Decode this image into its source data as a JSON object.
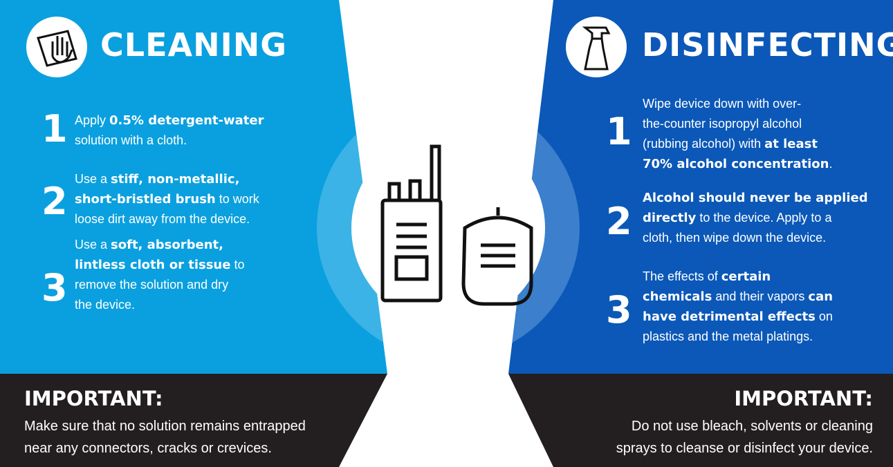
{
  "left": {
    "title": "CLEANING",
    "steps": [
      {
        "number": "1",
        "lines": [
          [
            {
              "text": "Apply "
            },
            {
              "text": "0.5% detergent-water",
              "bold": true
            }
          ],
          [
            {
              "text": "solution with a cloth."
            }
          ]
        ]
      },
      {
        "number": "2",
        "lines": [
          [
            {
              "text": "Use a "
            },
            {
              "text": "stiff, non-metallic,",
              "bold": true
            }
          ],
          [
            {
              "text": "short-bristled brush",
              "bold": true
            },
            {
              "text": " to work"
            }
          ],
          [
            {
              "text": "loose dirt away from the device."
            }
          ]
        ]
      },
      {
        "number": "3",
        "lines": [
          [
            {
              "text": "Use a "
            },
            {
              "text": "soft, absorbent,",
              "bold": true
            }
          ],
          [
            {
              "text": "lintless cloth or tissue",
              "bold": true
            },
            {
              "text": " to"
            }
          ],
          [
            {
              "text": "remove the solution and dry"
            }
          ],
          [
            {
              "text": "the device."
            }
          ]
        ]
      }
    ],
    "important": {
      "heading": "IMPORTANT:",
      "lines": [
        "Make sure that no solution remains entrapped",
        "near any connectors, cracks or crevices."
      ]
    }
  },
  "right": {
    "title": "DISINFECTING",
    "steps": [
      {
        "number": "1",
        "lines": [
          [
            {
              "text": "Wipe device down with over-"
            }
          ],
          [
            {
              "text": "the-counter isopropyl alcohol"
            }
          ],
          [
            {
              "text": "(rubbing alcohol) with "
            },
            {
              "text": "at least",
              "bold": true
            }
          ],
          [
            {
              "text": "70% alcohol concentration",
              "bold": true
            },
            {
              "text": "."
            }
          ]
        ]
      },
      {
        "number": "2",
        "lines": [
          [
            {
              "text": "Alcohol should never be applied",
              "bold": true
            }
          ],
          [
            {
              "text": "directly",
              "bold": true
            },
            {
              "text": " to the device. Apply to a"
            }
          ],
          [
            {
              "text": "cloth, then wipe down the device."
            }
          ]
        ]
      },
      {
        "number": "3",
        "lines": [
          [
            {
              "text": "The effects of "
            },
            {
              "text": "certain",
              "bold": true
            }
          ],
          [
            {
              "text": "chemicals",
              "bold": true
            },
            {
              "text": " and their vapors "
            },
            {
              "text": "can",
              "bold": true
            }
          ],
          [
            {
              "text": "have detrimental effects",
              "bold": true
            },
            {
              "text": " on"
            }
          ],
          [
            {
              "text": "plastics and the metal platings."
            }
          ]
        ]
      }
    ],
    "important": {
      "heading": "IMPORTANT:",
      "lines": [
        "Do not use bleach, solvents or cleaning",
        "sprays to cleanse or disinfect your device."
      ]
    }
  }
}
